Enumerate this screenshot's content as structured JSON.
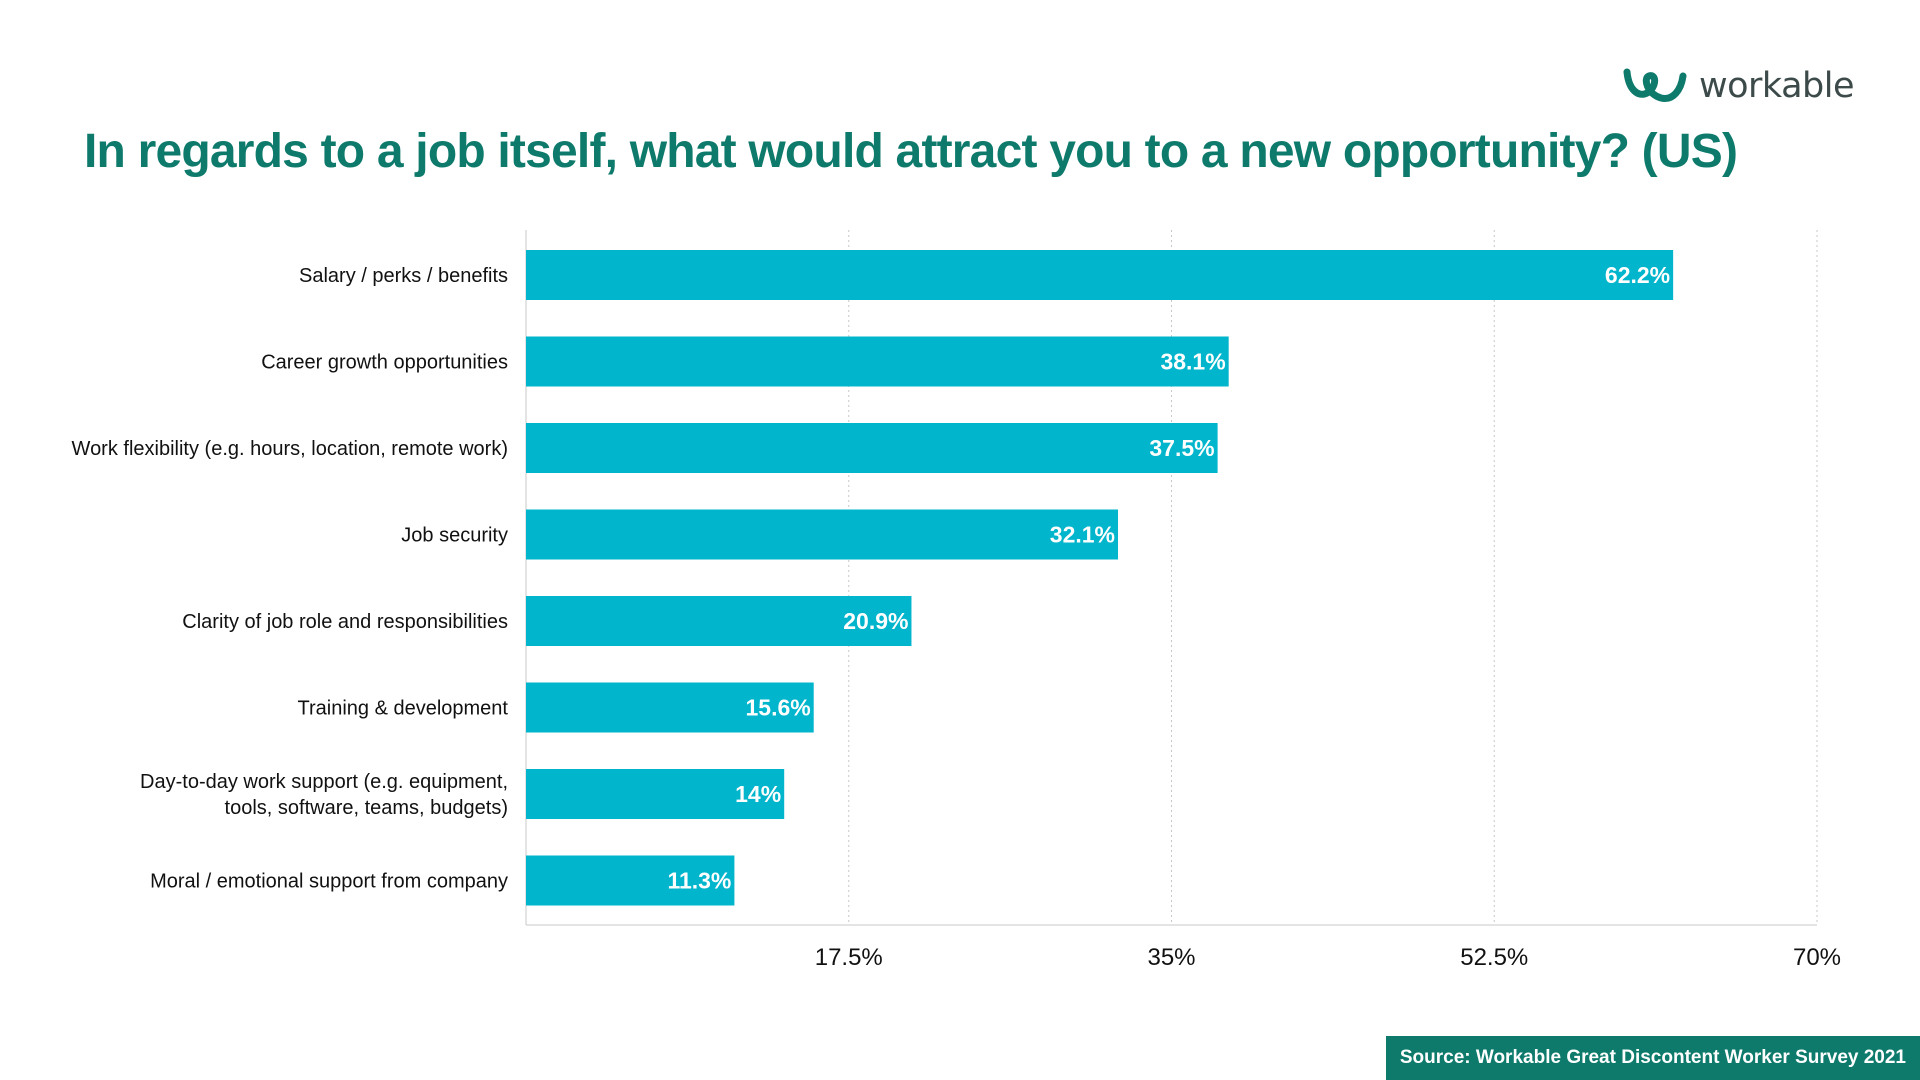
{
  "brand": {
    "logo_text": "workable",
    "logo_icon": "workable-logo-icon",
    "primary_color": "#0e7a6c",
    "bar_color": "#00b5cc",
    "grid_color": "#c8c8c8"
  },
  "source_text": "Source: Workable Great Discontent Worker Survey 2021",
  "chart_data": {
    "type": "bar",
    "orientation": "horizontal",
    "title": "In regards to a job itself, what would attract you to a new opportunity? (US)",
    "categories": [
      [
        "Salary / perks / benefits"
      ],
      [
        "Career growth opportunities"
      ],
      [
        "Work flexibility (e.g. hours, location, remote work)"
      ],
      [
        "Job security"
      ],
      [
        "Clarity of job role and responsibilities"
      ],
      [
        "Training & development"
      ],
      [
        "Day-to-day work support (e.g. equipment,",
        "tools, software, teams, budgets)"
      ],
      [
        "Moral / emotional support from company"
      ]
    ],
    "values": [
      62.2,
      38.1,
      37.5,
      32.1,
      20.9,
      15.6,
      14,
      11.3
    ],
    "value_labels": [
      "62.2%",
      "38.1%",
      "37.5%",
      "32.1%",
      "20.9%",
      "15.6%",
      "14%",
      "11.3%"
    ],
    "xlim": [
      0,
      70
    ],
    "x_ticks": [
      17.5,
      35,
      52.5,
      70
    ],
    "x_tick_labels": [
      "17.5%",
      "35%",
      "52.5%",
      "70%"
    ],
    "grid": "vertical-dotted",
    "legend": "none"
  }
}
